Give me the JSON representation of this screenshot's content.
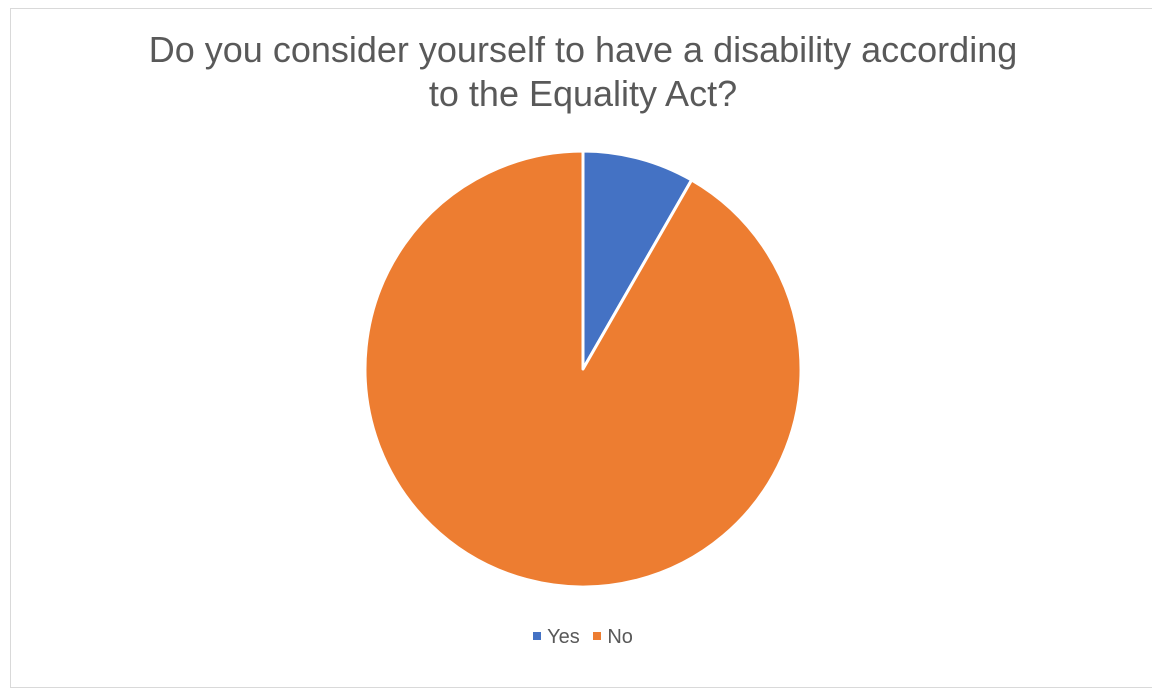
{
  "chart_data": {
    "type": "pie",
    "title_lines": [
      "Do you consider yourself to have a disability according",
      "to the Equality Act?"
    ],
    "slices": [
      {
        "label": "Yes",
        "value": 8.3,
        "color": "#4472C4"
      },
      {
        "label": "No",
        "value": 91.7,
        "color": "#ED7D31"
      }
    ],
    "legend_position": "bottom"
  }
}
